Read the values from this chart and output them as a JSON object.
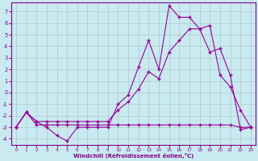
{
  "background_color": "#c8eaf0",
  "grid_color": "#b0c8c8",
  "line_color": "#990099",
  "marker": "+",
  "xlabel": "Windchill (Refroidissement éolien,°C)",
  "xlabel_color": "#880088",
  "tick_color": "#880088",
  "ylim": [
    -4.5,
    7.8
  ],
  "xlim": [
    -0.5,
    23.5
  ],
  "yticks": [
    -4,
    -3,
    -2,
    -1,
    0,
    1,
    2,
    3,
    4,
    5,
    6,
    7
  ],
  "xticks": [
    0,
    1,
    2,
    3,
    4,
    5,
    6,
    7,
    8,
    9,
    10,
    11,
    12,
    13,
    14,
    15,
    16,
    17,
    18,
    19,
    20,
    21,
    22,
    23
  ],
  "line1_x": [
    0,
    1,
    2,
    3,
    4,
    5,
    6,
    7,
    8,
    9,
    10,
    11,
    12,
    13,
    14,
    15,
    16,
    17,
    18,
    19,
    20,
    21,
    22,
    23
  ],
  "line1_y": [
    -3.0,
    -1.7,
    -2.5,
    -3.0,
    -3.7,
    -4.2,
    -3.0,
    -3.0,
    -3.0,
    -3.0,
    -1.0,
    -0.2,
    2.2,
    4.5,
    2.0,
    7.5,
    6.5,
    6.5,
    5.5,
    3.5,
    3.8,
    1.5,
    -3.2,
    -3.0
  ],
  "line2_x": [
    0,
    1,
    2,
    3,
    4,
    5,
    6,
    7,
    8,
    9,
    10,
    11,
    12,
    13,
    14,
    15,
    16,
    17,
    18,
    19,
    20,
    21,
    22,
    23
  ],
  "line2_y": [
    -3.0,
    -1.7,
    -2.8,
    -2.8,
    -2.8,
    -2.8,
    -2.8,
    -2.8,
    -2.8,
    -2.8,
    -2.8,
    -2.8,
    -2.8,
    -2.8,
    -2.8,
    -2.8,
    -2.8,
    -2.8,
    -2.8,
    -2.8,
    -2.8,
    -2.8,
    -3.0,
    -3.0
  ],
  "line3_x": [
    0,
    1,
    2,
    3,
    4,
    5,
    6,
    7,
    8,
    9,
    10,
    11,
    12,
    13,
    14,
    15,
    16,
    17,
    18,
    19,
    20,
    21,
    22,
    23
  ],
  "line3_y": [
    -3.0,
    -1.7,
    -2.5,
    -2.5,
    -2.5,
    -2.5,
    -2.5,
    -2.5,
    -2.5,
    -2.5,
    -1.5,
    -0.8,
    0.3,
    1.8,
    1.2,
    3.5,
    4.5,
    5.5,
    5.5,
    5.8,
    1.5,
    0.5,
    -1.5,
    -3.0
  ]
}
